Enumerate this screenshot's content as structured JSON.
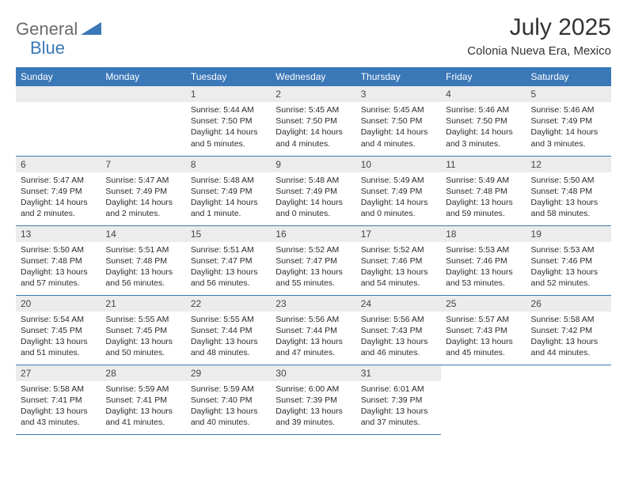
{
  "logo": {
    "text1": "General",
    "text2": "Blue",
    "shape_color": "#3b78b8",
    "text1_color": "#6b6b6b"
  },
  "header": {
    "month_title": "July 2025",
    "location": "Colonia Nueva Era, Mexico"
  },
  "theme": {
    "header_bg": "#3b78b8",
    "header_fg": "#ffffff",
    "daynum_bg": "#ececec",
    "daynum_fg": "#464646",
    "rule_color": "#3b78b8",
    "body_text": "#2b2b2b"
  },
  "columns": [
    "Sunday",
    "Monday",
    "Tuesday",
    "Wednesday",
    "Thursday",
    "Friday",
    "Saturday"
  ],
  "weeks": [
    [
      null,
      null,
      {
        "n": "1",
        "sunrise": "5:44 AM",
        "sunset": "7:50 PM",
        "daylight": "14 hours and 5 minutes."
      },
      {
        "n": "2",
        "sunrise": "5:45 AM",
        "sunset": "7:50 PM",
        "daylight": "14 hours and 4 minutes."
      },
      {
        "n": "3",
        "sunrise": "5:45 AM",
        "sunset": "7:50 PM",
        "daylight": "14 hours and 4 minutes."
      },
      {
        "n": "4",
        "sunrise": "5:46 AM",
        "sunset": "7:50 PM",
        "daylight": "14 hours and 3 minutes."
      },
      {
        "n": "5",
        "sunrise": "5:46 AM",
        "sunset": "7:49 PM",
        "daylight": "14 hours and 3 minutes."
      }
    ],
    [
      {
        "n": "6",
        "sunrise": "5:47 AM",
        "sunset": "7:49 PM",
        "daylight": "14 hours and 2 minutes."
      },
      {
        "n": "7",
        "sunrise": "5:47 AM",
        "sunset": "7:49 PM",
        "daylight": "14 hours and 2 minutes."
      },
      {
        "n": "8",
        "sunrise": "5:48 AM",
        "sunset": "7:49 PM",
        "daylight": "14 hours and 1 minute."
      },
      {
        "n": "9",
        "sunrise": "5:48 AM",
        "sunset": "7:49 PM",
        "daylight": "14 hours and 0 minutes."
      },
      {
        "n": "10",
        "sunrise": "5:49 AM",
        "sunset": "7:49 PM",
        "daylight": "14 hours and 0 minutes."
      },
      {
        "n": "11",
        "sunrise": "5:49 AM",
        "sunset": "7:48 PM",
        "daylight": "13 hours and 59 minutes."
      },
      {
        "n": "12",
        "sunrise": "5:50 AM",
        "sunset": "7:48 PM",
        "daylight": "13 hours and 58 minutes."
      }
    ],
    [
      {
        "n": "13",
        "sunrise": "5:50 AM",
        "sunset": "7:48 PM",
        "daylight": "13 hours and 57 minutes."
      },
      {
        "n": "14",
        "sunrise": "5:51 AM",
        "sunset": "7:48 PM",
        "daylight": "13 hours and 56 minutes."
      },
      {
        "n": "15",
        "sunrise": "5:51 AM",
        "sunset": "7:47 PM",
        "daylight": "13 hours and 56 minutes."
      },
      {
        "n": "16",
        "sunrise": "5:52 AM",
        "sunset": "7:47 PM",
        "daylight": "13 hours and 55 minutes."
      },
      {
        "n": "17",
        "sunrise": "5:52 AM",
        "sunset": "7:46 PM",
        "daylight": "13 hours and 54 minutes."
      },
      {
        "n": "18",
        "sunrise": "5:53 AM",
        "sunset": "7:46 PM",
        "daylight": "13 hours and 53 minutes."
      },
      {
        "n": "19",
        "sunrise": "5:53 AM",
        "sunset": "7:46 PM",
        "daylight": "13 hours and 52 minutes."
      }
    ],
    [
      {
        "n": "20",
        "sunrise": "5:54 AM",
        "sunset": "7:45 PM",
        "daylight": "13 hours and 51 minutes."
      },
      {
        "n": "21",
        "sunrise": "5:55 AM",
        "sunset": "7:45 PM",
        "daylight": "13 hours and 50 minutes."
      },
      {
        "n": "22",
        "sunrise": "5:55 AM",
        "sunset": "7:44 PM",
        "daylight": "13 hours and 48 minutes."
      },
      {
        "n": "23",
        "sunrise": "5:56 AM",
        "sunset": "7:44 PM",
        "daylight": "13 hours and 47 minutes."
      },
      {
        "n": "24",
        "sunrise": "5:56 AM",
        "sunset": "7:43 PM",
        "daylight": "13 hours and 46 minutes."
      },
      {
        "n": "25",
        "sunrise": "5:57 AM",
        "sunset": "7:43 PM",
        "daylight": "13 hours and 45 minutes."
      },
      {
        "n": "26",
        "sunrise": "5:58 AM",
        "sunset": "7:42 PM",
        "daylight": "13 hours and 44 minutes."
      }
    ],
    [
      {
        "n": "27",
        "sunrise": "5:58 AM",
        "sunset": "7:41 PM",
        "daylight": "13 hours and 43 minutes."
      },
      {
        "n": "28",
        "sunrise": "5:59 AM",
        "sunset": "7:41 PM",
        "daylight": "13 hours and 41 minutes."
      },
      {
        "n": "29",
        "sunrise": "5:59 AM",
        "sunset": "7:40 PM",
        "daylight": "13 hours and 40 minutes."
      },
      {
        "n": "30",
        "sunrise": "6:00 AM",
        "sunset": "7:39 PM",
        "daylight": "13 hours and 39 minutes."
      },
      {
        "n": "31",
        "sunrise": "6:01 AM",
        "sunset": "7:39 PM",
        "daylight": "13 hours and 37 minutes."
      },
      null,
      null
    ]
  ],
  "labels": {
    "sunrise": "Sunrise:",
    "sunset": "Sunset:",
    "daylight": "Daylight:"
  }
}
